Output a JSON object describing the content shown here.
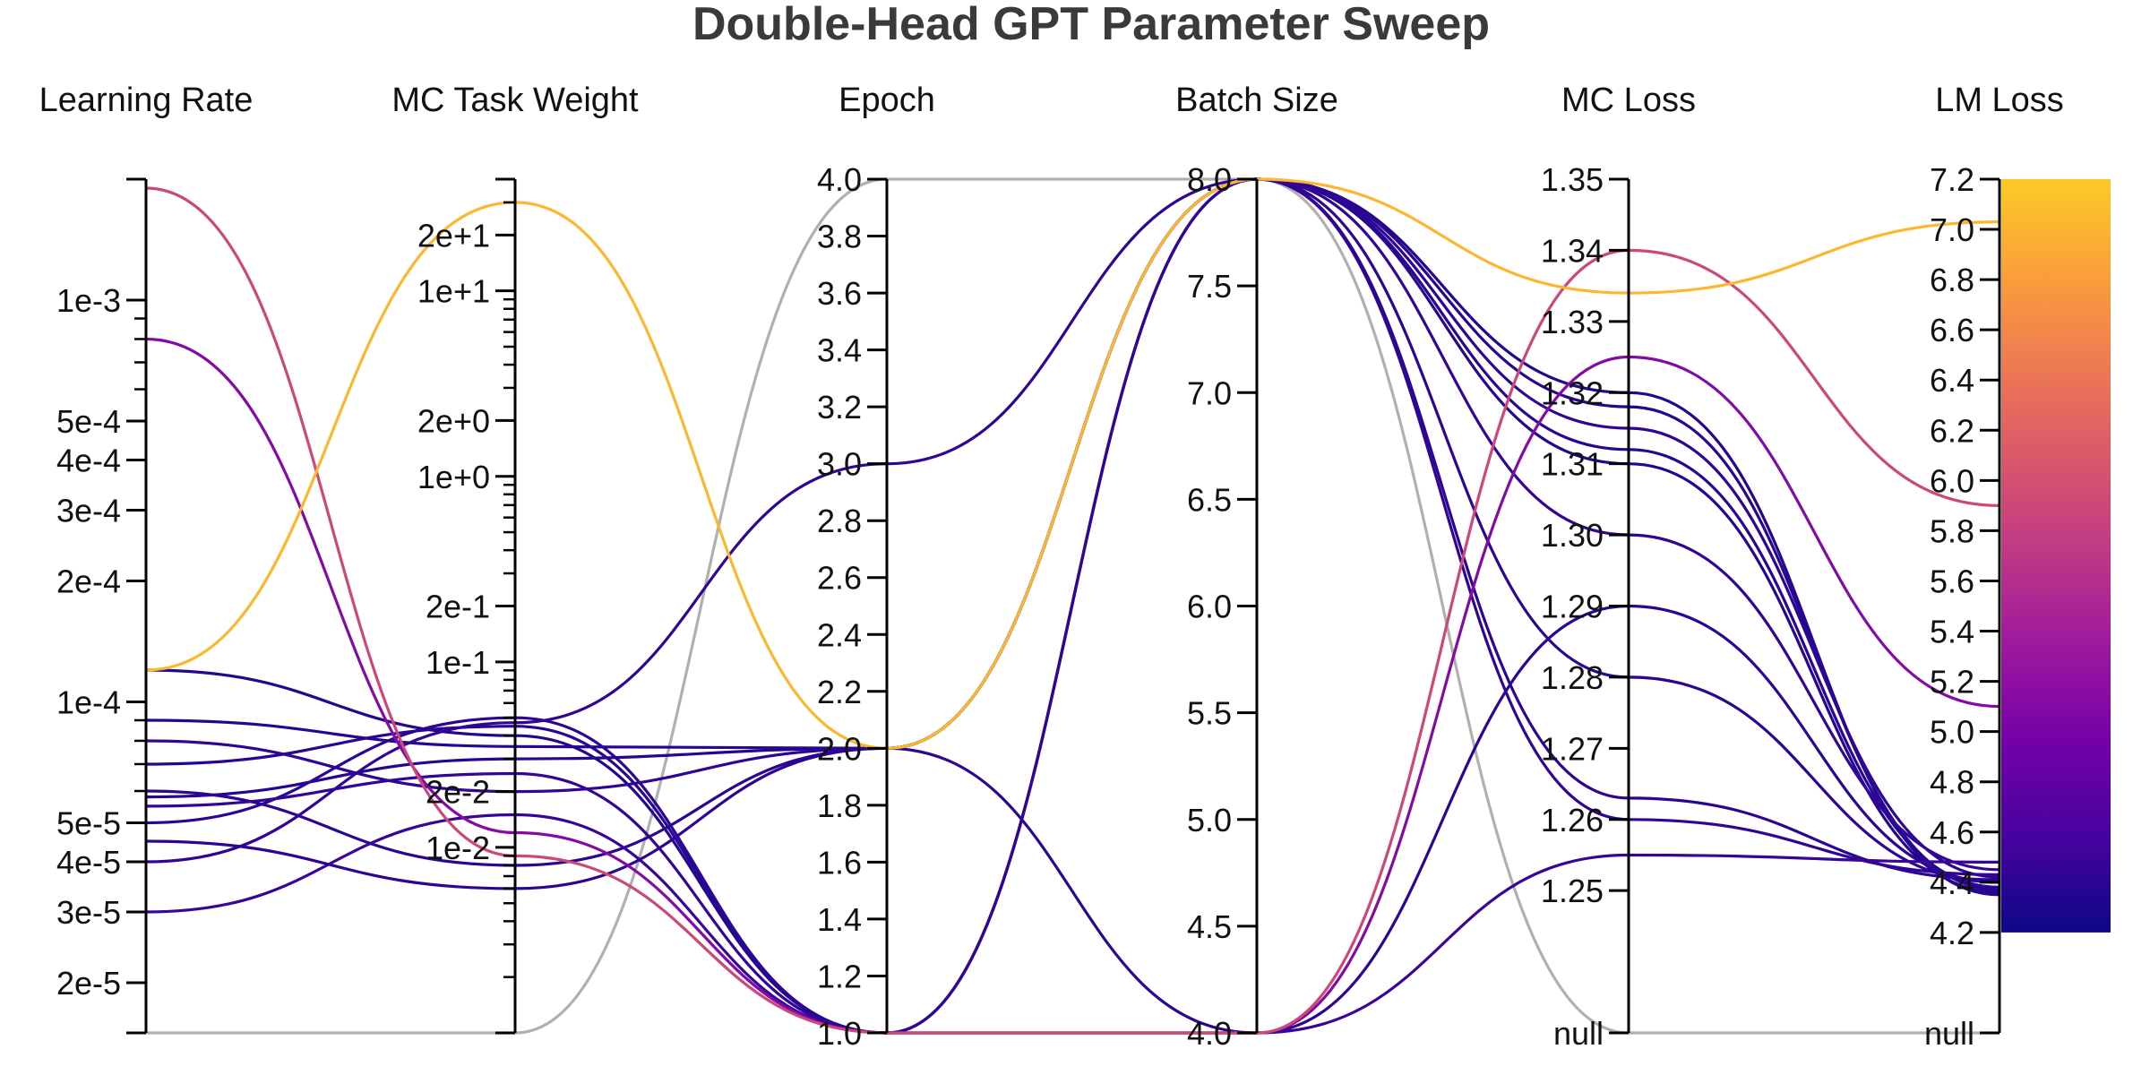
{
  "chart_data": {
    "type": "parallel-coordinates",
    "title": "Double-Head GPT Parameter Sweep",
    "color_by": "LM Loss",
    "colorscale": [
      "#0d0887",
      "#46039f",
      "#7201a8",
      "#9c179e",
      "#bd3786",
      "#d8576b",
      "#ed7953",
      "#fb9f3a",
      "#fdca26"
    ],
    "null_color": "#b0b0b0",
    "axes": [
      {
        "name": "Learning Rate",
        "scale": "log",
        "range": [
          1.5e-05,
          0.002
        ],
        "tick_labels": [
          {
            "v": 0.001,
            "t": "1e-3"
          },
          {
            "v": 0.0005,
            "t": "5e-4"
          },
          {
            "v": 0.0004,
            "t": "4e-4"
          },
          {
            "v": 0.0003,
            "t": "3e-4"
          },
          {
            "v": 0.0002,
            "t": "2e-4"
          },
          {
            "v": 0.0001,
            "t": "1e-4"
          },
          {
            "v": 5e-05,
            "t": "5e-5"
          },
          {
            "v": 4e-05,
            "t": "4e-5"
          },
          {
            "v": 3e-05,
            "t": "3e-5"
          },
          {
            "v": 2e-05,
            "t": "2e-5"
          }
        ]
      },
      {
        "name": "MC Task Weight",
        "scale": "log",
        "range": [
          0.001,
          40
        ],
        "tick_labels": [
          {
            "v": 20,
            "t": "2e+1"
          },
          {
            "v": 10,
            "t": "1e+1"
          },
          {
            "v": 2,
            "t": "2e+0"
          },
          {
            "v": 1,
            "t": "1e+0"
          },
          {
            "v": 0.2,
            "t": "2e-1"
          },
          {
            "v": 0.1,
            "t": "1e-1"
          },
          {
            "v": 0.02,
            "t": "2e-2"
          },
          {
            "v": 0.01,
            "t": "1e-2"
          }
        ]
      },
      {
        "name": "Epoch",
        "scale": "linear",
        "range": [
          1,
          4
        ],
        "tick_labels": [
          {
            "v": 4.0,
            "t": "4.0"
          },
          {
            "v": 3.8,
            "t": "3.8"
          },
          {
            "v": 3.6,
            "t": "3.6"
          },
          {
            "v": 3.4,
            "t": "3.4"
          },
          {
            "v": 3.2,
            "t": "3.2"
          },
          {
            "v": 3.0,
            "t": "3.0"
          },
          {
            "v": 2.8,
            "t": "2.8"
          },
          {
            "v": 2.6,
            "t": "2.6"
          },
          {
            "v": 2.4,
            "t": "2.4"
          },
          {
            "v": 2.2,
            "t": "2.2"
          },
          {
            "v": 2.0,
            "t": "2.0"
          },
          {
            "v": 1.8,
            "t": "1.8"
          },
          {
            "v": 1.6,
            "t": "1.6"
          },
          {
            "v": 1.4,
            "t": "1.4"
          },
          {
            "v": 1.2,
            "t": "1.2"
          },
          {
            "v": 1.0,
            "t": "1.0"
          }
        ]
      },
      {
        "name": "Batch Size",
        "scale": "linear",
        "range": [
          4,
          8
        ],
        "tick_labels": [
          {
            "v": 8.0,
            "t": "8.0"
          },
          {
            "v": 7.5,
            "t": "7.5"
          },
          {
            "v": 7.0,
            "t": "7.0"
          },
          {
            "v": 6.5,
            "t": "6.5"
          },
          {
            "v": 6.0,
            "t": "6.0"
          },
          {
            "v": 5.5,
            "t": "5.5"
          },
          {
            "v": 5.0,
            "t": "5.0"
          },
          {
            "v": 4.5,
            "t": "4.5"
          },
          {
            "v": 4.0,
            "t": "4.0"
          }
        ]
      },
      {
        "name": "MC Loss",
        "scale": "linear",
        "range": [
          1.23,
          1.35
        ],
        "has_null": true,
        "null_label": "null",
        "tick_labels": [
          {
            "v": 1.35,
            "t": "1.35"
          },
          {
            "v": 1.34,
            "t": "1.34"
          },
          {
            "v": 1.33,
            "t": "1.33"
          },
          {
            "v": 1.32,
            "t": "1.32"
          },
          {
            "v": 1.31,
            "t": "1.31"
          },
          {
            "v": 1.3,
            "t": "1.30"
          },
          {
            "v": 1.29,
            "t": "1.29"
          },
          {
            "v": 1.28,
            "t": "1.28"
          },
          {
            "v": 1.27,
            "t": "1.27"
          },
          {
            "v": 1.26,
            "t": "1.26"
          },
          {
            "v": 1.25,
            "t": "1.25"
          }
        ]
      },
      {
        "name": "LM Loss",
        "scale": "linear",
        "range": [
          3.8,
          7.2
        ],
        "has_null": true,
        "null_label": "null",
        "colorbar_range": [
          4.2,
          7.2
        ],
        "tick_labels": [
          {
            "v": 7.2,
            "t": "7.2"
          },
          {
            "v": 7.0,
            "t": "7.0"
          },
          {
            "v": 6.8,
            "t": "6.8"
          },
          {
            "v": 6.6,
            "t": "6.6"
          },
          {
            "v": 6.4,
            "t": "6.4"
          },
          {
            "v": 6.2,
            "t": "6.2"
          },
          {
            "v": 6.0,
            "t": "6.0"
          },
          {
            "v": 5.8,
            "t": "5.8"
          },
          {
            "v": 5.6,
            "t": "5.6"
          },
          {
            "v": 5.4,
            "t": "5.4"
          },
          {
            "v": 5.2,
            "t": "5.2"
          },
          {
            "v": 5.0,
            "t": "5.0"
          },
          {
            "v": 4.8,
            "t": "4.8"
          },
          {
            "v": 4.6,
            "t": "4.6"
          },
          {
            "v": 4.4,
            "t": "4.4"
          },
          {
            "v": 4.2,
            "t": "4.2"
          }
        ]
      }
    ],
    "runs": [
      {
        "values": [
          1.5e-05,
          0.001,
          4.0,
          8.0,
          null,
          null
        ]
      },
      {
        "values": [
          0.00012,
          30,
          2.0,
          8.0,
          1.334,
          7.03
        ]
      },
      {
        "values": [
          0.0019,
          0.009,
          1.0,
          4.0,
          1.34,
          5.9
        ]
      },
      {
        "values": [
          0.0008,
          0.012,
          1.0,
          4.0,
          1.325,
          5.1
        ]
      },
      {
        "values": [
          0.00012,
          0.04,
          1.0,
          8.0,
          1.32,
          4.35
        ]
      },
      {
        "values": [
          9e-05,
          0.035,
          2.0,
          8.0,
          1.318,
          4.37
        ]
      },
      {
        "values": [
          8e-05,
          0.02,
          2.0,
          8.0,
          1.315,
          4.42
        ]
      },
      {
        "values": [
          7e-05,
          0.045,
          1.0,
          8.0,
          1.312,
          4.38
        ]
      },
      {
        "values": [
          6e-05,
          0.008,
          2.0,
          4.0,
          1.29,
          4.4
        ]
      },
      {
        "values": [
          5.5e-05,
          0.025,
          1.0,
          8.0,
          1.3,
          4.45
        ]
      },
      {
        "values": [
          5e-05,
          0.05,
          1.0,
          8.0,
          1.28,
          4.4
        ]
      },
      {
        "values": [
          4.5e-05,
          0.006,
          2.0,
          8.0,
          1.263,
          4.41
        ]
      },
      {
        "values": [
          4e-05,
          0.047,
          3.0,
          8.0,
          1.26,
          4.43
        ]
      },
      {
        "values": [
          3e-05,
          0.015,
          1.0,
          4.0,
          1.255,
          4.48
        ]
      },
      {
        "values": [
          5.8e-05,
          0.03,
          2.0,
          8.0,
          1.31,
          4.36
        ]
      }
    ]
  }
}
